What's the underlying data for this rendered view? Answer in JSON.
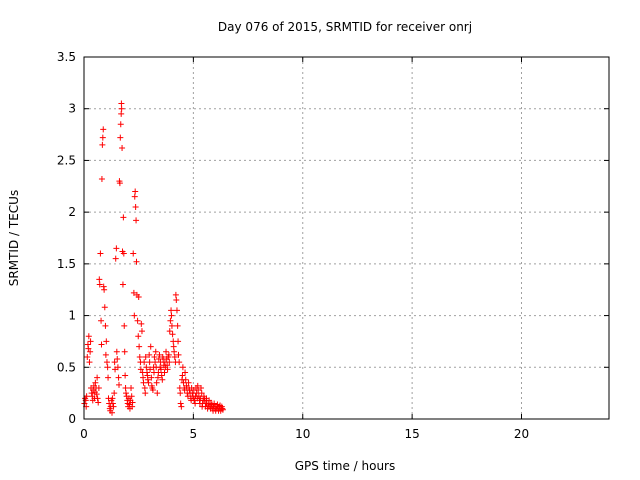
{
  "chart_data": {
    "type": "scatter",
    "title": "Day 076 of 2015, SRMTID for receiver onrj",
    "xlabel": "GPS time / hours",
    "ylabel": "SRMTID / TECUs",
    "xlim": [
      0,
      24
    ],
    "ylim": [
      0,
      3.5
    ],
    "xticks": [
      0,
      5,
      10,
      15,
      20
    ],
    "yticks": [
      0,
      0.5,
      1,
      1.5,
      2,
      2.5,
      3,
      3.5
    ],
    "xtick_labels": [
      "0",
      "5",
      "10",
      "15",
      "20"
    ],
    "ytick_labels": [
      "0",
      "0.5",
      "1",
      "1.5",
      "2",
      "2.5",
      "3",
      "3.5"
    ],
    "grid": true,
    "marker": "+",
    "series": [
      {
        "name": "SRMTID",
        "color": "#ff0000",
        "points": [
          [
            0.02,
            0.15
          ],
          [
            0.05,
            0.2
          ],
          [
            0.08,
            0.18
          ],
          [
            0.1,
            0.12
          ],
          [
            0.12,
            0.22
          ],
          [
            0.15,
            0.6
          ],
          [
            0.18,
            0.72
          ],
          [
            0.2,
            0.68
          ],
          [
            0.22,
            0.8
          ],
          [
            0.25,
            0.55
          ],
          [
            0.28,
            0.65
          ],
          [
            0.3,
            0.75
          ],
          [
            0.32,
            0.3
          ],
          [
            0.35,
            0.25
          ],
          [
            0.38,
            0.22
          ],
          [
            0.4,
            0.18
          ],
          [
            0.42,
            0.28
          ],
          [
            0.45,
            0.32
          ],
          [
            0.48,
            0.2
          ],
          [
            0.5,
            0.26
          ],
          [
            0.52,
            0.35
          ],
          [
            0.55,
            0.3
          ],
          [
            0.58,
            0.24
          ],
          [
            0.6,
            0.4
          ],
          [
            0.62,
            0.2
          ],
          [
            0.65,
            0.16
          ],
          [
            0.68,
            0.3
          ],
          [
            0.7,
            1.35
          ],
          [
            0.72,
            1.3
          ],
          [
            0.75,
            1.6
          ],
          [
            0.78,
            0.95
          ],
          [
            0.8,
            0.72
          ],
          [
            0.82,
            2.32
          ],
          [
            0.84,
            2.65
          ],
          [
            0.86,
            2.72
          ],
          [
            0.88,
            2.8
          ],
          [
            0.9,
            1.28
          ],
          [
            0.92,
            1.25
          ],
          [
            0.95,
            1.08
          ],
          [
            0.98,
            0.9
          ],
          [
            1.0,
            0.62
          ],
          [
            1.02,
            0.75
          ],
          [
            1.05,
            0.55
          ],
          [
            1.08,
            0.5
          ],
          [
            1.1,
            0.4
          ],
          [
            1.12,
            0.2
          ],
          [
            1.15,
            0.15
          ],
          [
            1.18,
            0.1
          ],
          [
            1.2,
            0.08
          ],
          [
            1.22,
            0.12
          ],
          [
            1.25,
            0.18
          ],
          [
            1.28,
            0.06
          ],
          [
            1.3,
            0.2
          ],
          [
            1.32,
            0.15
          ],
          [
            1.35,
            0.12
          ],
          [
            1.38,
            0.25
          ],
          [
            1.4,
            0.55
          ],
          [
            1.42,
            0.48
          ],
          [
            1.45,
            1.55
          ],
          [
            1.48,
            1.65
          ],
          [
            1.5,
            0.65
          ],
          [
            1.52,
            0.58
          ],
          [
            1.55,
            0.5
          ],
          [
            1.58,
            0.4
          ],
          [
            1.6,
            0.33
          ],
          [
            1.62,
            2.3
          ],
          [
            1.64,
            2.28
          ],
          [
            1.66,
            2.72
          ],
          [
            1.68,
            2.85
          ],
          [
            1.7,
            2.95
          ],
          [
            1.71,
            3.05
          ],
          [
            1.72,
            3.0
          ],
          [
            1.74,
            2.62
          ],
          [
            1.76,
            1.62
          ],
          [
            1.78,
            1.3
          ],
          [
            1.8,
            1.95
          ],
          [
            1.82,
            1.6
          ],
          [
            1.84,
            0.9
          ],
          [
            1.86,
            0.65
          ],
          [
            1.88,
            0.42
          ],
          [
            1.9,
            0.3
          ],
          [
            1.92,
            0.25
          ],
          [
            1.95,
            0.22
          ],
          [
            1.98,
            0.18
          ],
          [
            2.0,
            0.15
          ],
          [
            2.02,
            0.12
          ],
          [
            2.05,
            0.2
          ],
          [
            2.08,
            0.14
          ],
          [
            2.1,
            0.1
          ],
          [
            2.12,
            0.18
          ],
          [
            2.15,
            0.3
          ],
          [
            2.18,
            0.22
          ],
          [
            2.2,
            0.12
          ],
          [
            2.22,
            0.16
          ],
          [
            2.25,
            1.6
          ],
          [
            2.28,
            1.22
          ],
          [
            2.3,
            1.0
          ],
          [
            2.32,
            2.15
          ],
          [
            2.34,
            2.2
          ],
          [
            2.36,
            2.05
          ],
          [
            2.38,
            1.92
          ],
          [
            2.4,
            1.52
          ],
          [
            2.42,
            1.2
          ],
          [
            2.45,
            0.95
          ],
          [
            2.48,
            0.8
          ],
          [
            2.5,
            1.18
          ],
          [
            2.52,
            0.7
          ],
          [
            2.55,
            0.6
          ],
          [
            2.58,
            0.55
          ],
          [
            2.6,
            0.48
          ],
          [
            2.62,
            0.92
          ],
          [
            2.65,
            0.85
          ],
          [
            2.68,
            0.45
          ],
          [
            2.7,
            0.4
          ],
          [
            2.72,
            0.35
          ],
          [
            2.75,
            0.55
          ],
          [
            2.78,
            0.3
          ],
          [
            2.8,
            0.25
          ],
          [
            2.82,
            0.6
          ],
          [
            2.85,
            0.5
          ],
          [
            2.88,
            0.45
          ],
          [
            2.9,
            0.42
          ],
          [
            2.92,
            0.38
          ],
          [
            2.95,
            0.35
          ],
          [
            2.98,
            0.62
          ],
          [
            3.0,
            0.55
          ],
          [
            3.02,
            0.48
          ],
          [
            3.05,
            0.7
          ],
          [
            3.08,
            0.4
          ],
          [
            3.1,
            0.32
          ],
          [
            3.12,
            0.3
          ],
          [
            3.15,
            0.28
          ],
          [
            3.18,
            0.5
          ],
          [
            3.2,
            0.45
          ],
          [
            3.22,
            0.6
          ],
          [
            3.25,
            0.55
          ],
          [
            3.28,
            0.65
          ],
          [
            3.3,
            0.5
          ],
          [
            3.32,
            0.35
          ],
          [
            3.35,
            0.25
          ],
          [
            3.38,
            0.4
          ],
          [
            3.4,
            0.45
          ],
          [
            3.42,
            0.58
          ],
          [
            3.45,
            0.62
          ],
          [
            3.48,
            0.5
          ],
          [
            3.5,
            0.55
          ],
          [
            3.52,
            0.48
          ],
          [
            3.55,
            0.42
          ],
          [
            3.58,
            0.38
          ],
          [
            3.6,
            0.6
          ],
          [
            3.62,
            0.58
          ],
          [
            3.65,
            0.52
          ],
          [
            3.68,
            0.45
          ],
          [
            3.7,
            0.55
          ],
          [
            3.72,
            0.5
          ],
          [
            3.75,
            0.65
          ],
          [
            3.78,
            0.58
          ],
          [
            3.8,
            0.52
          ],
          [
            3.82,
            0.48
          ],
          [
            3.85,
            0.6
          ],
          [
            3.88,
            0.62
          ],
          [
            3.9,
            0.55
          ],
          [
            3.92,
            0.85
          ],
          [
            3.95,
            0.95
          ],
          [
            3.98,
            1.05
          ],
          [
            4.0,
            1.0
          ],
          [
            4.02,
            0.9
          ],
          [
            4.05,
            0.82
          ],
          [
            4.08,
            0.75
          ],
          [
            4.1,
            0.7
          ],
          [
            4.12,
            0.65
          ],
          [
            4.15,
            0.6
          ],
          [
            4.18,
            0.55
          ],
          [
            4.2,
            1.2
          ],
          [
            4.22,
            1.15
          ],
          [
            4.25,
            1.05
          ],
          [
            4.28,
            0.9
          ],
          [
            4.3,
            0.75
          ],
          [
            4.32,
            0.62
          ],
          [
            4.35,
            0.55
          ],
          [
            4.38,
            0.3
          ],
          [
            4.4,
            0.25
          ],
          [
            4.42,
            0.15
          ],
          [
            4.45,
            0.12
          ],
          [
            4.48,
            0.38
          ],
          [
            4.5,
            0.42
          ],
          [
            4.52,
            0.5
          ],
          [
            4.55,
            0.35
          ],
          [
            4.58,
            0.3
          ],
          [
            4.6,
            0.28
          ],
          [
            4.62,
            0.45
          ],
          [
            4.65,
            0.38
          ],
          [
            4.68,
            0.32
          ],
          [
            4.7,
            0.3
          ],
          [
            4.72,
            0.25
          ],
          [
            4.75,
            0.22
          ],
          [
            4.78,
            0.35
          ],
          [
            4.8,
            0.3
          ],
          [
            4.82,
            0.28
          ],
          [
            4.85,
            0.25
          ],
          [
            4.88,
            0.2
          ],
          [
            4.9,
            0.18
          ],
          [
            4.92,
            0.3
          ],
          [
            4.95,
            0.25
          ],
          [
            4.98,
            0.22
          ],
          [
            5.0,
            0.2
          ],
          [
            5.02,
            0.28
          ],
          [
            5.05,
            0.18
          ],
          [
            5.08,
            0.15
          ],
          [
            5.1,
            0.22
          ],
          [
            5.12,
            0.3
          ],
          [
            5.15,
            0.25
          ],
          [
            5.18,
            0.2
          ],
          [
            5.2,
            0.32
          ],
          [
            5.22,
            0.28
          ],
          [
            5.25,
            0.22
          ],
          [
            5.28,
            0.18
          ],
          [
            5.3,
            0.15
          ],
          [
            5.32,
            0.2
          ],
          [
            5.35,
            0.3
          ],
          [
            5.38,
            0.25
          ],
          [
            5.4,
            0.12
          ],
          [
            5.42,
            0.15
          ],
          [
            5.45,
            0.18
          ],
          [
            5.48,
            0.22
          ],
          [
            5.5,
            0.2
          ],
          [
            5.52,
            0.18
          ],
          [
            5.55,
            0.12
          ],
          [
            5.58,
            0.15
          ],
          [
            5.6,
            0.2
          ],
          [
            5.62,
            0.15
          ],
          [
            5.65,
            0.1
          ],
          [
            5.68,
            0.12
          ],
          [
            5.7,
            0.15
          ],
          [
            5.72,
            0.18
          ],
          [
            5.75,
            0.12
          ],
          [
            5.78,
            0.1
          ],
          [
            5.8,
            0.15
          ],
          [
            5.82,
            0.12
          ],
          [
            5.85,
            0.14
          ],
          [
            5.88,
            0.1
          ],
          [
            5.9,
            0.08
          ],
          [
            5.92,
            0.12
          ],
          [
            5.95,
            0.15
          ],
          [
            5.98,
            0.1
          ],
          [
            6.0,
            0.12
          ],
          [
            6.02,
            0.08
          ],
          [
            6.05,
            0.1
          ],
          [
            6.08,
            0.12
          ],
          [
            6.1,
            0.14
          ],
          [
            6.12,
            0.1
          ],
          [
            6.15,
            0.08
          ],
          [
            6.18,
            0.12
          ],
          [
            6.2,
            0.1
          ],
          [
            6.22,
            0.13
          ],
          [
            6.25,
            0.08
          ],
          [
            6.28,
            0.1
          ],
          [
            6.3,
            0.12
          ],
          [
            6.32,
            0.1
          ],
          [
            6.35,
            0.09
          ]
        ]
      }
    ]
  }
}
